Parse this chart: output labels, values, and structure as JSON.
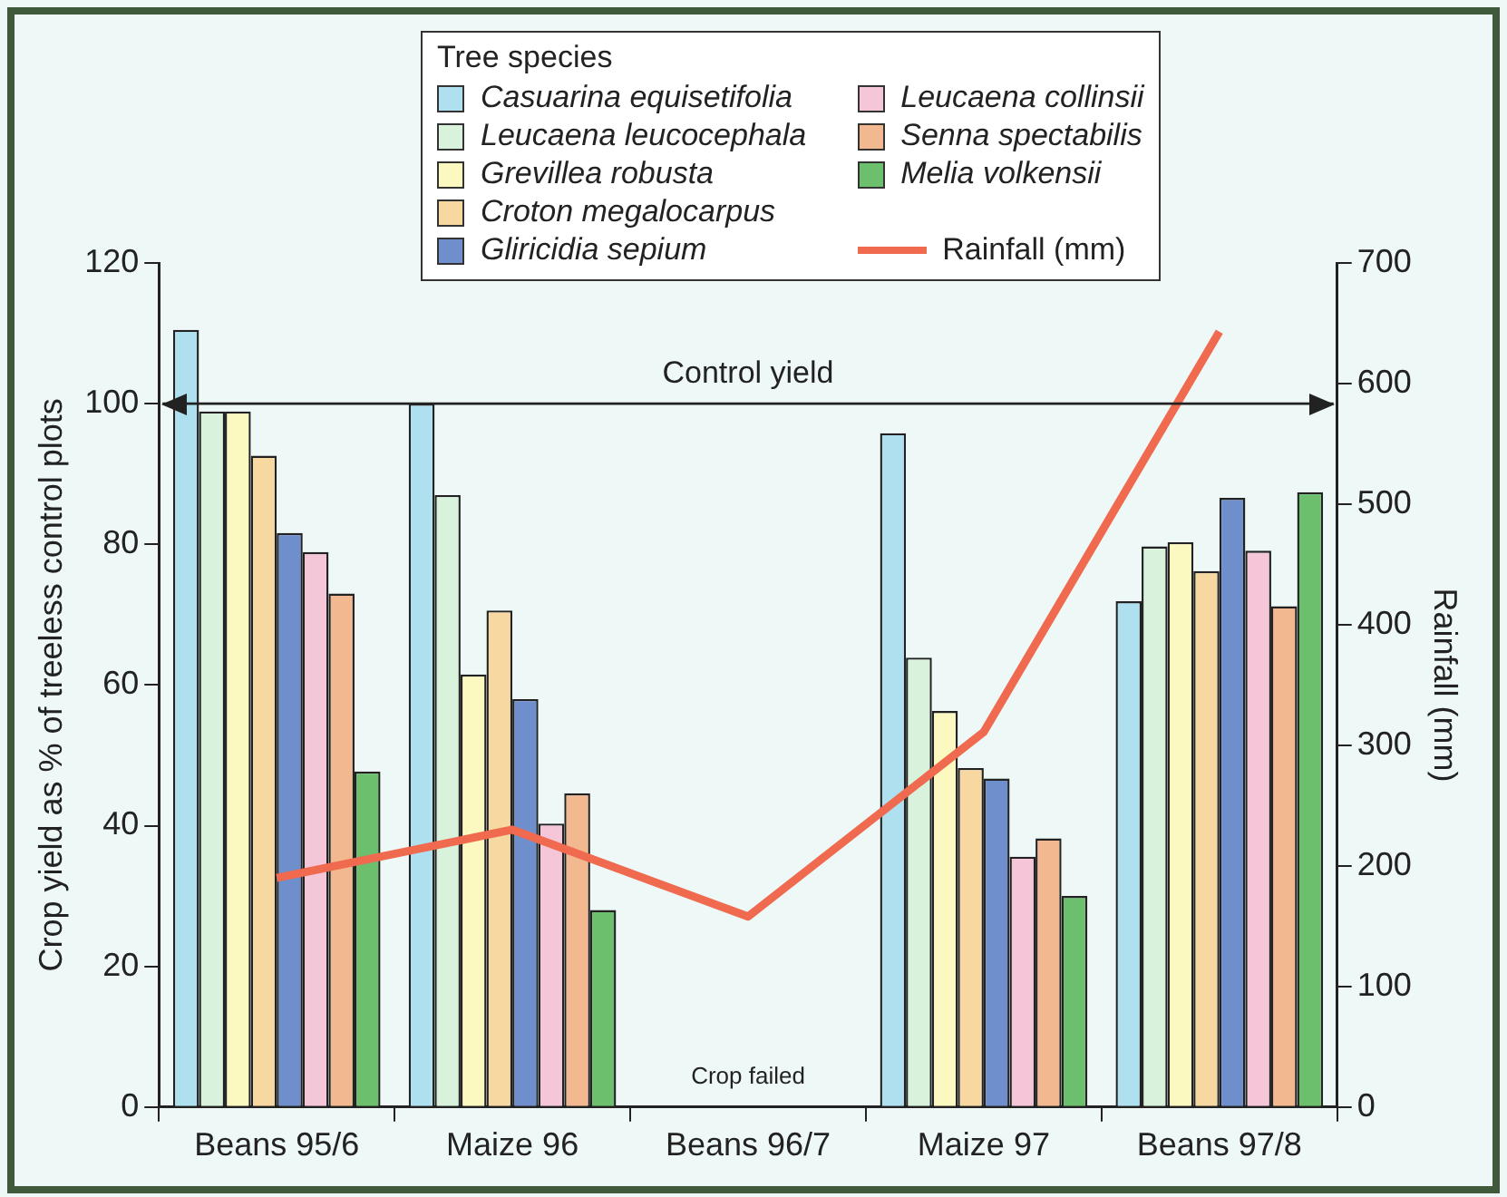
{
  "chart_data": {
    "type": "bar",
    "ylabel": "Crop yield as % of treeless control plots",
    "y2label": "Rainfall (mm)",
    "legend_title": "Tree species",
    "categories": [
      "Beans 95/6",
      "Maize 96",
      "Beans 96/7",
      "Maize 97",
      "Beans 97/8"
    ],
    "series": [
      {
        "name": "Casuarina equisetifolia",
        "color": "#aee0f0",
        "values": [
          110.5,
          100,
          null,
          95.8,
          71.9
        ]
      },
      {
        "name": "Leucaena leucocephala",
        "color": "#d8f2dc",
        "values": [
          98.9,
          87,
          null,
          63.9,
          79.7
        ]
      },
      {
        "name": "Grevillea robusta",
        "color": "#fbf8c0",
        "values": [
          98.9,
          61.5,
          null,
          56.3,
          80.3
        ]
      },
      {
        "name": "Croton megalocarpus",
        "color": "#f6d8a0",
        "values": [
          92.6,
          70.6,
          null,
          48.2,
          76.2
        ]
      },
      {
        "name": "Gliricidia sepium",
        "color": "#6f8fcc",
        "values": [
          81.6,
          58,
          null,
          46.7,
          86.6
        ]
      },
      {
        "name": "Leucaena collinsii",
        "color": "#f5c6d8",
        "values": [
          78.9,
          40.3,
          null,
          35.6,
          79.1
        ]
      },
      {
        "name": "Senna spectabilis",
        "color": "#f2b890",
        "values": [
          73,
          44.6,
          null,
          38.2,
          71.2
        ]
      },
      {
        "name": "Melia volkensii",
        "color": "#6cbf6c",
        "values": [
          47.7,
          28,
          null,
          30,
          87.4
        ]
      },
      {
        "name": "Rainfall (mm)",
        "type": "line",
        "axis": "y2",
        "color": "#f06a50",
        "values": [
          190,
          230,
          158,
          311,
          643
        ],
        "marker": "none",
        "line_style": "solid"
      }
    ],
    "ylim": [
      0,
      120
    ],
    "yticks": [
      0,
      20,
      40,
      60,
      80,
      100,
      120
    ],
    "y2lim": [
      0,
      700
    ],
    "y2ticks": [
      0,
      100,
      200,
      300,
      400,
      500,
      600,
      700
    ],
    "ref_lines": [
      {
        "axis": "y",
        "value": 100,
        "label": "Control yield"
      }
    ],
    "annotations": [
      "Crop failed"
    ],
    "grid": false,
    "legend": "top"
  }
}
